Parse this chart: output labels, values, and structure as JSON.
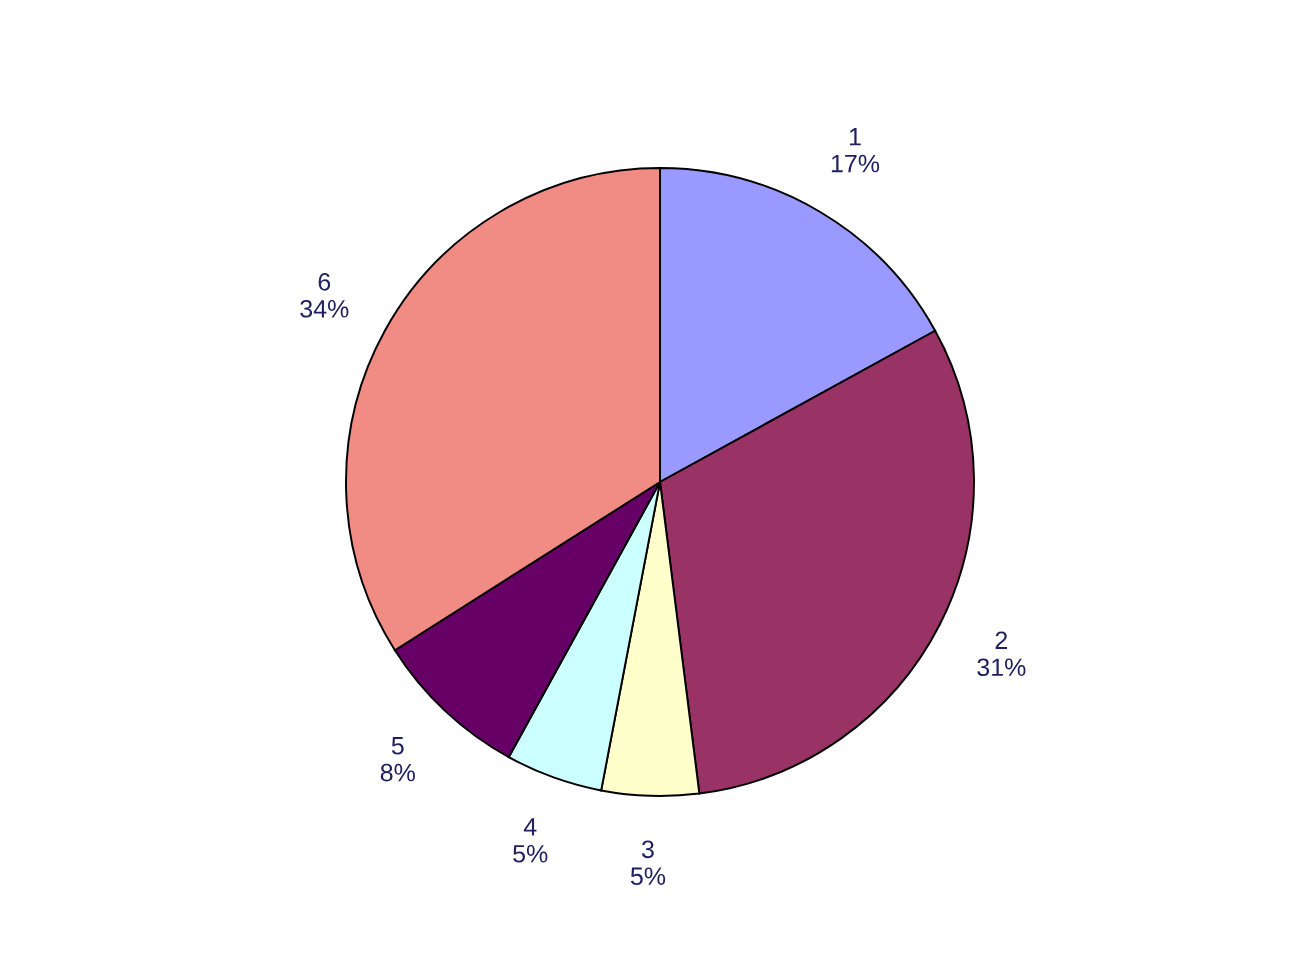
{
  "chart_data": {
    "type": "pie",
    "categories": [
      "1",
      "2",
      "3",
      "4",
      "5",
      "6"
    ],
    "values": [
      17,
      31,
      5,
      5,
      8,
      34
    ],
    "value_labels": [
      "17%",
      "31%",
      "5%",
      "5%",
      "8%",
      "34%"
    ],
    "colors": [
      "#9999ff",
      "#993366",
      "#ffffcc",
      "#ccffff",
      "#660066",
      "#f08c84"
    ]
  }
}
